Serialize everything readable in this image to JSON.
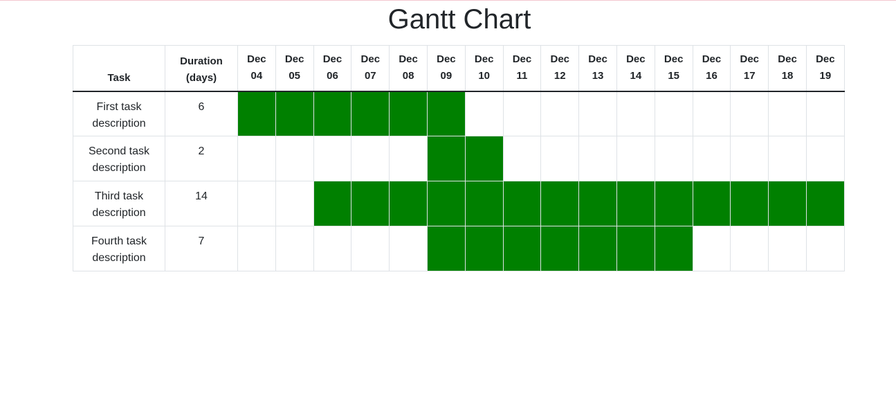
{
  "page": {
    "title": "Gantt Chart"
  },
  "colors": {
    "bar": "#008000",
    "grid": "#dee2e6",
    "header_rule": "#212529"
  },
  "chart_data": {
    "type": "table",
    "title": "Gantt Chart",
    "columns": {
      "task": "Task",
      "duration": "Duration (days)"
    },
    "days": [
      {
        "month": "Dec",
        "day": "04"
      },
      {
        "month": "Dec",
        "day": "05"
      },
      {
        "month": "Dec",
        "day": "06"
      },
      {
        "month": "Dec",
        "day": "07"
      },
      {
        "month": "Dec",
        "day": "08"
      },
      {
        "month": "Dec",
        "day": "09"
      },
      {
        "month": "Dec",
        "day": "10"
      },
      {
        "month": "Dec",
        "day": "11"
      },
      {
        "month": "Dec",
        "day": "12"
      },
      {
        "month": "Dec",
        "day": "13"
      },
      {
        "month": "Dec",
        "day": "14"
      },
      {
        "month": "Dec",
        "day": "15"
      },
      {
        "month": "Dec",
        "day": "16"
      },
      {
        "month": "Dec",
        "day": "17"
      },
      {
        "month": "Dec",
        "day": "18"
      },
      {
        "month": "Dec",
        "day": "19"
      }
    ],
    "tasks": [
      {
        "name": "First task description",
        "duration": 6,
        "start": "Dec 04",
        "end": "Dec 09"
      },
      {
        "name": "Second task description",
        "duration": 2,
        "start": "Dec 09",
        "end": "Dec 10"
      },
      {
        "name": "Third task description",
        "duration": 14,
        "start": "Dec 06",
        "end": "Dec 19"
      },
      {
        "name": "Fourth task description",
        "duration": 7,
        "start": "Dec 09",
        "end": "Dec 15"
      }
    ]
  }
}
